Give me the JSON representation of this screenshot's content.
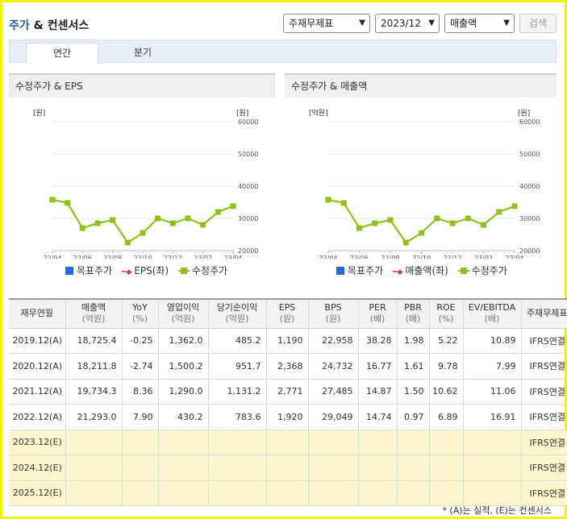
{
  "header": {
    "title_part1": "주가",
    "title_part2": "& 컨센서스",
    "select_statement": "주재무제표",
    "select_period": "2023/12",
    "select_metric": "매출액",
    "search_label": "검색"
  },
  "tabs": [
    {
      "label": "연간",
      "active": true
    },
    {
      "label": "분기",
      "active": false
    }
  ],
  "charts": [
    {
      "title": "수정주가 & EPS",
      "left_unit": "[원]",
      "right_unit": "[원]",
      "legend": [
        "목표주가",
        "EPS(좌)",
        "수정주가"
      ]
    },
    {
      "title": "수정주가 & 매출액",
      "left_unit": "[억원]",
      "right_unit": "[원]",
      "legend": [
        "목표주가",
        "매출액(좌)",
        "수정주가"
      ]
    }
  ],
  "chart_data": [
    {
      "type": "line",
      "title": "수정주가 & EPS",
      "x_ticks": [
        "22/04",
        "22/06",
        "22/08",
        "22/10",
        "22/12",
        "23/02",
        "23/04"
      ],
      "x": [
        "22/04",
        "22/05",
        "22/06",
        "22/07",
        "22/08",
        "22/09",
        "22/10",
        "22/11",
        "22/12",
        "23/01",
        "23/02",
        "23/03",
        "23/04"
      ],
      "y_ticks_right": [
        "60000",
        "50000",
        "40000",
        "30000",
        "20000"
      ],
      "ylim_right": [
        20000,
        60000
      ],
      "series": [
        {
          "name": "수정주가",
          "color": "#8ec21a",
          "values": [
            35800,
            34800,
            27000,
            28500,
            29500,
            22500,
            25500,
            30000,
            28500,
            30000,
            28000,
            32000,
            33800
          ]
        }
      ],
      "legend": [
        "목표주가",
        "EPS(좌)",
        "수정주가"
      ]
    },
    {
      "type": "line",
      "title": "수정주가 & 매출액",
      "x_ticks": [
        "22/04",
        "22/06",
        "22/08",
        "22/10",
        "22/12",
        "23/02",
        "23/04"
      ],
      "x": [
        "22/04",
        "22/05",
        "22/06",
        "22/07",
        "22/08",
        "22/09",
        "22/10",
        "22/11",
        "22/12",
        "23/01",
        "23/02",
        "23/03",
        "23/04"
      ],
      "y_ticks_right": [
        "60000",
        "50000",
        "40000",
        "30000",
        "20000"
      ],
      "ylim_right": [
        20000,
        60000
      ],
      "series": [
        {
          "name": "수정주가",
          "color": "#8ec21a",
          "values": [
            35800,
            34800,
            27000,
            28500,
            29500,
            22500,
            25500,
            30000,
            28500,
            30000,
            28000,
            32000,
            33800
          ]
        }
      ],
      "legend": [
        "목표주가",
        "매출액(좌)",
        "수정주가"
      ]
    }
  ],
  "table": {
    "headers": [
      {
        "main": "재무연월",
        "sub": ""
      },
      {
        "main": "매출액",
        "sub": "(억원)"
      },
      {
        "main": "YoY",
        "sub": "(%)"
      },
      {
        "main": "영업이익",
        "sub": "(억원)"
      },
      {
        "main": "당기순이익",
        "sub": "(억원)"
      },
      {
        "main": "EPS",
        "sub": "(원)"
      },
      {
        "main": "BPS",
        "sub": "(원)"
      },
      {
        "main": "PER",
        "sub": "(배)"
      },
      {
        "main": "PBR",
        "sub": "(배)"
      },
      {
        "main": "ROE",
        "sub": "(%)"
      },
      {
        "main": "EV/EBITDA",
        "sub": "(배)"
      },
      {
        "main": "주재무제표",
        "sub": ""
      }
    ],
    "rows": [
      [
        "2019.12(A)",
        "18,725.4",
        "-0.25",
        "1,362.0",
        "485.2",
        "1,190",
        "22,958",
        "38.28",
        "1.98",
        "5.22",
        "10.89",
        "IFRS연결"
      ],
      [
        "2020.12(A)",
        "18,211.8",
        "-2.74",
        "1,500.2",
        "951.7",
        "2,368",
        "24,732",
        "16.77",
        "1.61",
        "9.78",
        "7.99",
        "IFRS연결"
      ],
      [
        "2021.12(A)",
        "19,734.3",
        "8.36",
        "1,290.0",
        "1,131.2",
        "2,771",
        "27,485",
        "14.87",
        "1.50",
        "10.62",
        "11.06",
        "IFRS연결"
      ],
      [
        "2022.12(A)",
        "21,293.0",
        "7.90",
        "430.2",
        "783.6",
        "1,920",
        "29,049",
        "14.74",
        "0.97",
        "6.89",
        "16.91",
        "IFRS연결"
      ],
      [
        "2023.12(E)",
        "",
        "",
        "",
        "",
        "",
        "",
        "",
        "",
        "",
        "",
        "IFRS연결"
      ],
      [
        "2024.12(E)",
        "",
        "",
        "",
        "",
        "",
        "",
        "",
        "",
        "",
        "",
        "IFRS연결"
      ],
      [
        "2025.12(E)",
        "",
        "",
        "",
        "",
        "",
        "",
        "",
        "",
        "",
        "",
        "IFRS연결"
      ]
    ]
  },
  "footnote": "* (A)는 실적, (E)는 컨센서스"
}
